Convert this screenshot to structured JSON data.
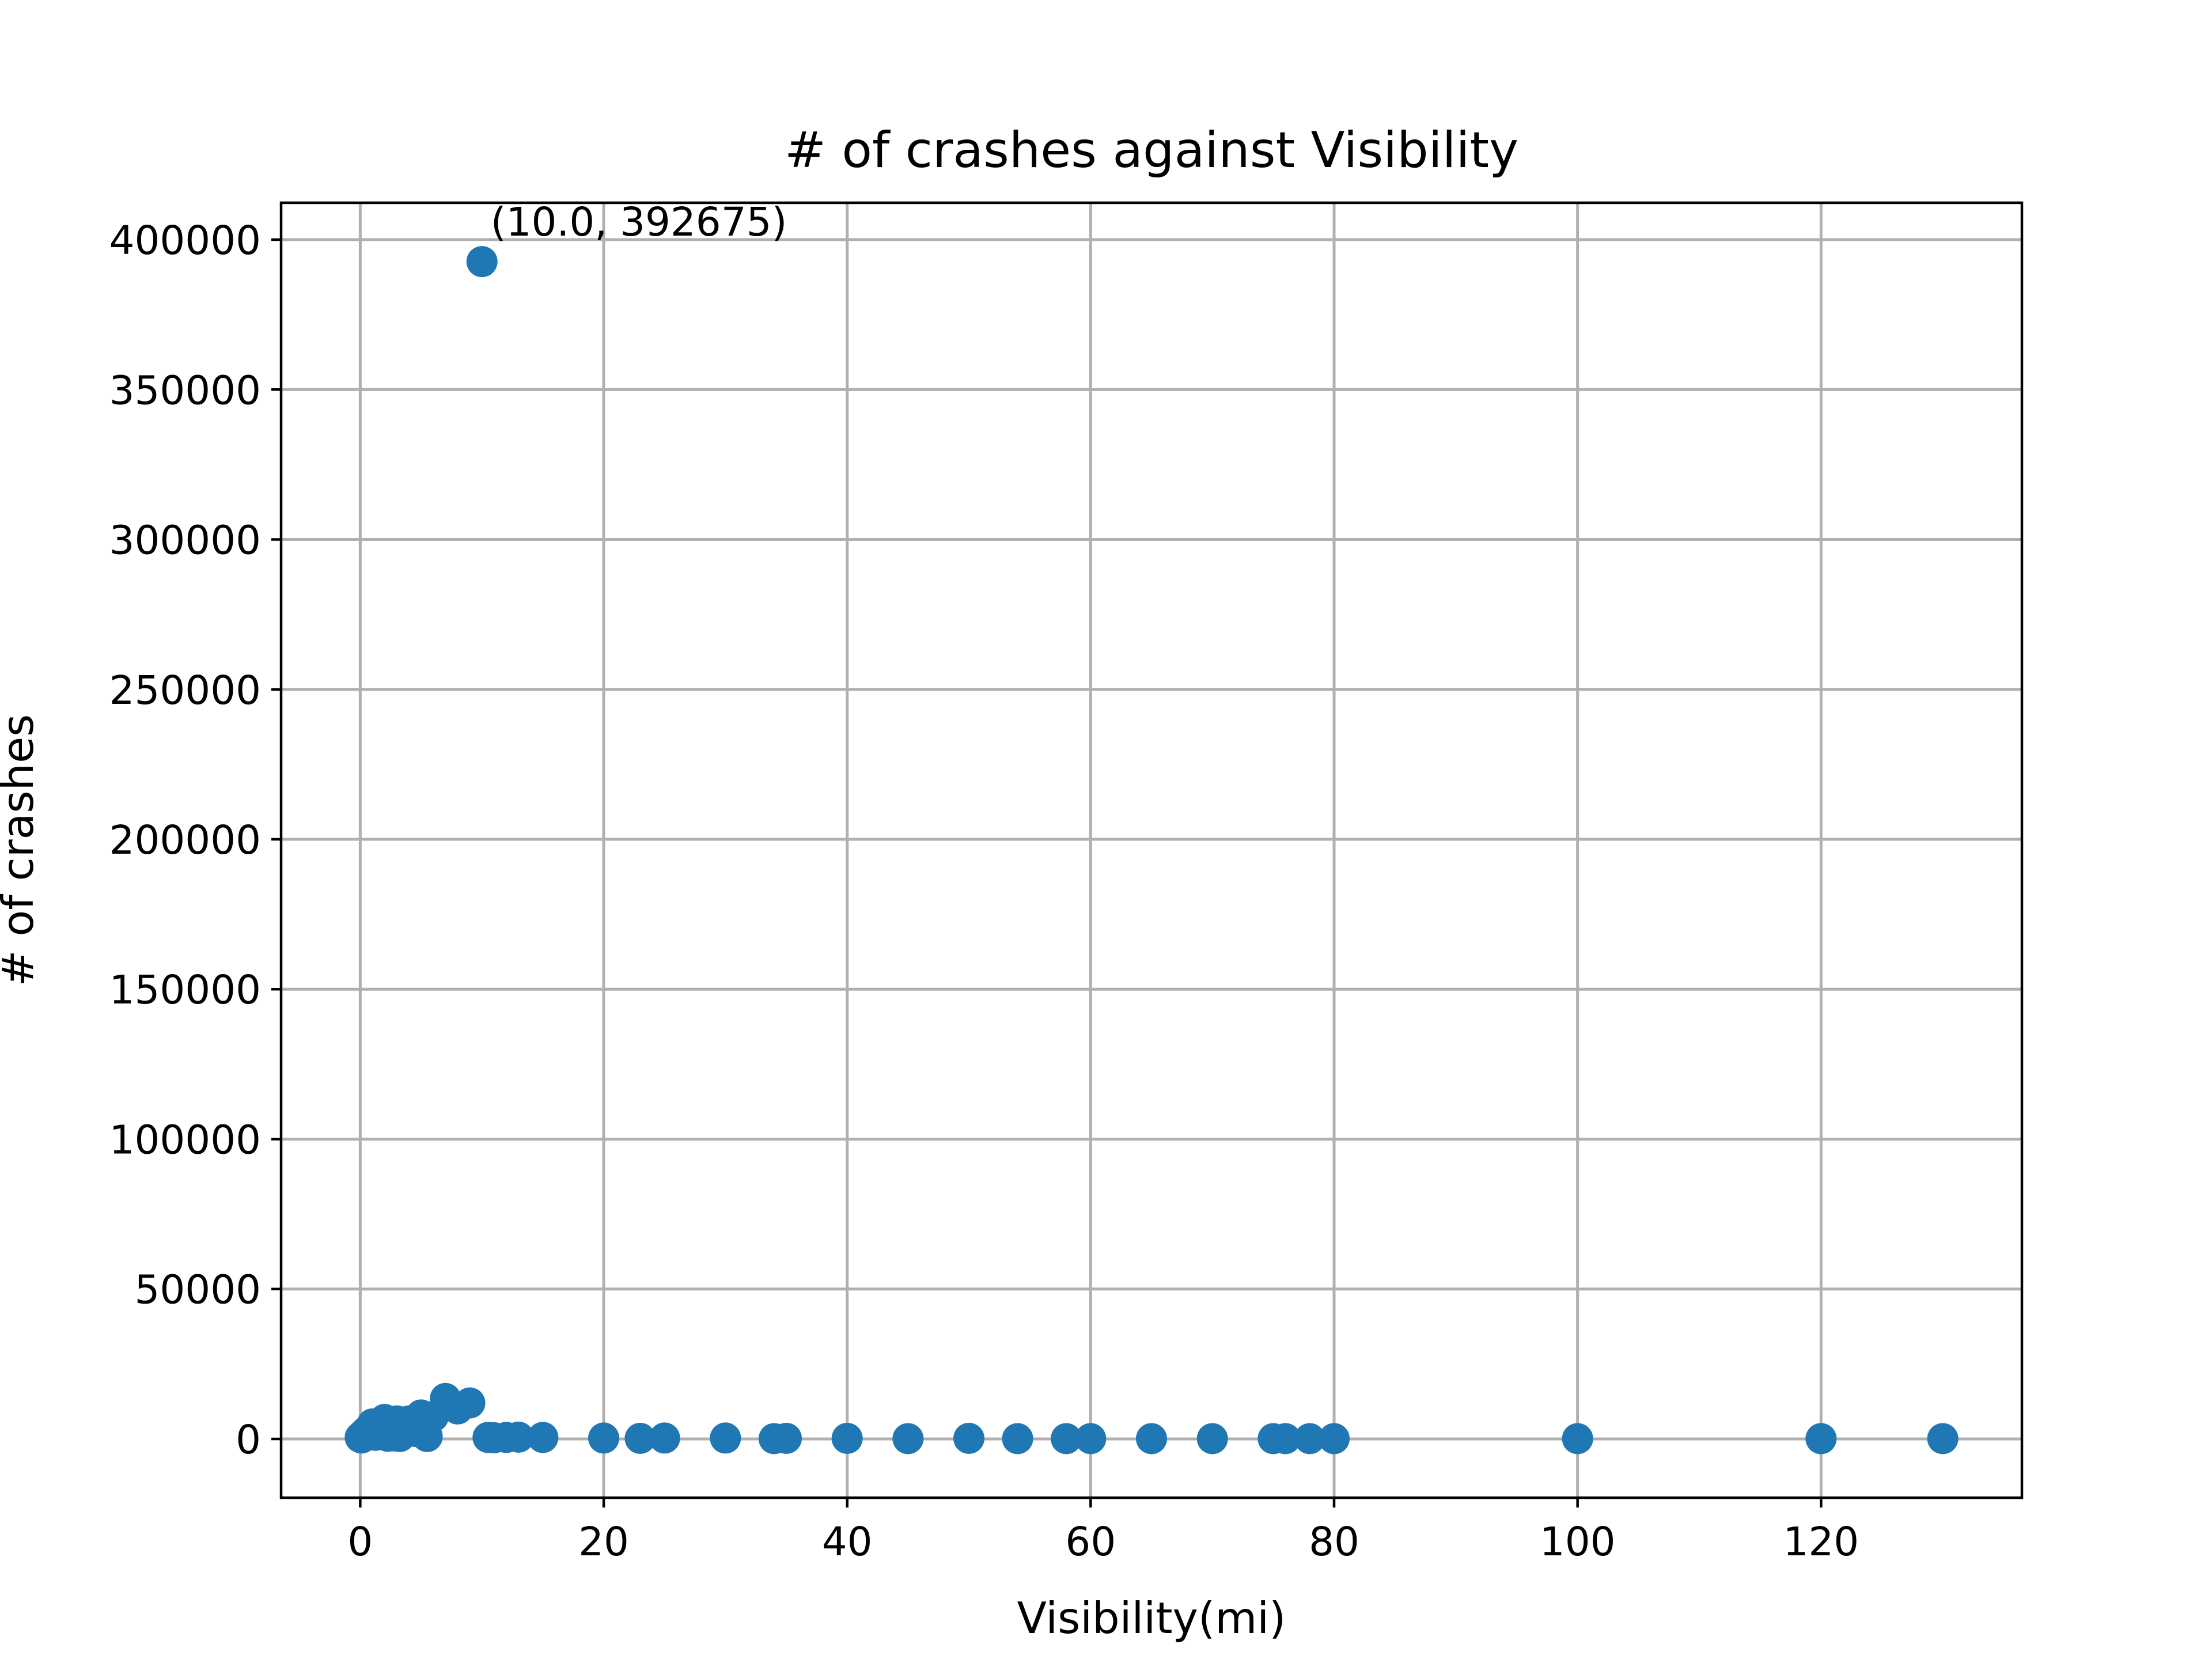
{
  "chart_data": {
    "type": "scatter",
    "title": "# of crashes against Visibility",
    "xlabel": "Visibility(mi)",
    "ylabel": "# of crashes",
    "xlim": [
      -6.5,
      136.5
    ],
    "ylim": [
      -19600,
      412300
    ],
    "x_ticks": [
      0,
      20,
      40,
      60,
      80,
      100,
      120
    ],
    "x_tick_labels": [
      "0",
      "20",
      "40",
      "60",
      "80",
      "100",
      "120"
    ],
    "y_ticks": [
      0,
      50000,
      100000,
      150000,
      200000,
      250000,
      300000,
      350000,
      400000
    ],
    "y_tick_labels": [
      "0",
      "50000",
      "100000",
      "150000",
      "200000",
      "250000",
      "300000",
      "350000",
      "400000"
    ],
    "grid": true,
    "marker_color": "#1f77b4",
    "points": [
      {
        "x": 0.0,
        "y": 500
      },
      {
        "x": 0.1,
        "y": 300
      },
      {
        "x": 0.2,
        "y": 800
      },
      {
        "x": 0.25,
        "y": 1500
      },
      {
        "x": 0.5,
        "y": 2500
      },
      {
        "x": 0.75,
        "y": 1800
      },
      {
        "x": 1.0,
        "y": 5000
      },
      {
        "x": 1.25,
        "y": 1200
      },
      {
        "x": 1.5,
        "y": 3500
      },
      {
        "x": 1.75,
        "y": 2000
      },
      {
        "x": 2.0,
        "y": 6500
      },
      {
        "x": 2.25,
        "y": 900
      },
      {
        "x": 2.5,
        "y": 4000
      },
      {
        "x": 2.75,
        "y": 1000
      },
      {
        "x": 3.0,
        "y": 6000
      },
      {
        "x": 3.25,
        "y": 800
      },
      {
        "x": 3.5,
        "y": 3000
      },
      {
        "x": 4.0,
        "y": 6000
      },
      {
        "x": 4.5,
        "y": 2500
      },
      {
        "x": 5.0,
        "y": 8000
      },
      {
        "x": 5.5,
        "y": 800
      },
      {
        "x": 6.0,
        "y": 7500
      },
      {
        "x": 7.0,
        "y": 13500
      },
      {
        "x": 8.0,
        "y": 10000
      },
      {
        "x": 9.0,
        "y": 12000
      },
      {
        "x": 10.0,
        "y": 392675
      },
      {
        "x": 10.5,
        "y": 500
      },
      {
        "x": 11.0,
        "y": 400
      },
      {
        "x": 12.0,
        "y": 500
      },
      {
        "x": 13.0,
        "y": 600
      },
      {
        "x": 15.0,
        "y": 500
      },
      {
        "x": 20.0,
        "y": 300
      },
      {
        "x": 23.0,
        "y": 200
      },
      {
        "x": 25.0,
        "y": 300
      },
      {
        "x": 30.0,
        "y": 300
      },
      {
        "x": 34.0,
        "y": 100
      },
      {
        "x": 35.0,
        "y": 200
      },
      {
        "x": 40.0,
        "y": 200
      },
      {
        "x": 45.0,
        "y": 100
      },
      {
        "x": 50.0,
        "y": 200
      },
      {
        "x": 54.0,
        "y": 100
      },
      {
        "x": 58.0,
        "y": 100
      },
      {
        "x": 60.0,
        "y": 100
      },
      {
        "x": 65.0,
        "y": 100
      },
      {
        "x": 70.0,
        "y": 100
      },
      {
        "x": 75.0,
        "y": 100
      },
      {
        "x": 76.0,
        "y": 100
      },
      {
        "x": 78.0,
        "y": 100
      },
      {
        "x": 80.0,
        "y": 100
      },
      {
        "x": 100.0,
        "y": 100
      },
      {
        "x": 120.0,
        "y": 100
      },
      {
        "x": 130.0,
        "y": 100
      }
    ],
    "annotations": [
      {
        "text": "(10.0, 392675)",
        "x": 10.0,
        "y": 392675
      }
    ]
  }
}
